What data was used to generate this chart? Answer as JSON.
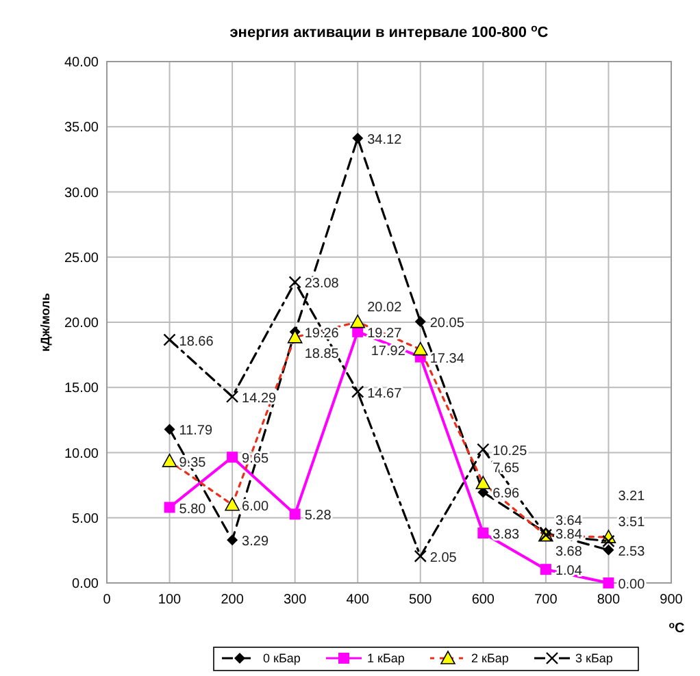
{
  "chart_data": {
    "type": "line",
    "title": "энергия активации в интервале 100-800 $^{o}$C",
    "xlabel": "$^{o}$C",
    "ylabel": "кДж/моль",
    "x": [
      100,
      200,
      300,
      400,
      500,
      600,
      700,
      800
    ],
    "xlim": [
      0,
      900
    ],
    "xticks": [
      0,
      100,
      200,
      300,
      400,
      500,
      600,
      700,
      800,
      900
    ],
    "ylim": [
      0,
      40
    ],
    "yticks": [
      {
        "value": 0,
        "label": "0.00"
      },
      {
        "value": 5,
        "label": "5.00"
      },
      {
        "value": 10,
        "label": "10.00"
      },
      {
        "value": 15,
        "label": "15.00"
      },
      {
        "value": 20,
        "label": "20.00"
      },
      {
        "value": 25,
        "label": "25.00"
      },
      {
        "value": 30,
        "label": "30.00"
      },
      {
        "value": 35,
        "label": "35.00"
      },
      {
        "value": 40,
        "label": "40.00"
      }
    ],
    "grid": true,
    "legend": "bottom",
    "series": [
      {
        "name": "0 кБар",
        "color": "#000000",
        "marker": "diamond",
        "line_style": "dashed",
        "values": [
          11.79,
          3.29,
          19.26,
          34.12,
          20.05,
          6.96,
          3.84,
          2.53
        ],
        "value_labels": [
          "11.79",
          "3.29",
          "19.26",
          "34.12",
          "20.05",
          "6.96",
          "3.84",
          "2.53"
        ]
      },
      {
        "name": "1 кБар",
        "color": "#ff00ff",
        "marker": "square",
        "line_style": "solid",
        "values": [
          5.8,
          9.65,
          5.28,
          19.27,
          17.34,
          3.83,
          1.04,
          0.0
        ],
        "value_labels": [
          "5.80",
          "9.65",
          "5.28",
          "19.27",
          "17.34",
          "3.83",
          "1.04",
          "0.00"
        ]
      },
      {
        "name": "2 кБар",
        "color": "#e8301c",
        "marker": "triangle",
        "line_style": "dotted",
        "values": [
          9.35,
          6.0,
          18.85,
          20.02,
          17.92,
          7.65,
          3.64,
          3.51
        ],
        "value_labels": [
          "9.35",
          "6.00",
          "18.85",
          "20.02",
          "17.92",
          "7.65",
          "3.64",
          "3.51"
        ]
      },
      {
        "name": "3 кБар",
        "color": "#000000",
        "marker": "cross",
        "line_style": "dashed",
        "values": [
          18.66,
          14.29,
          23.08,
          14.67,
          2.05,
          10.25,
          3.68,
          3.21
        ],
        "value_labels": [
          "18.66",
          "14.29",
          "23.08",
          "14.67",
          "2.05",
          "10.25",
          "3.68",
          "3.21"
        ]
      }
    ]
  }
}
